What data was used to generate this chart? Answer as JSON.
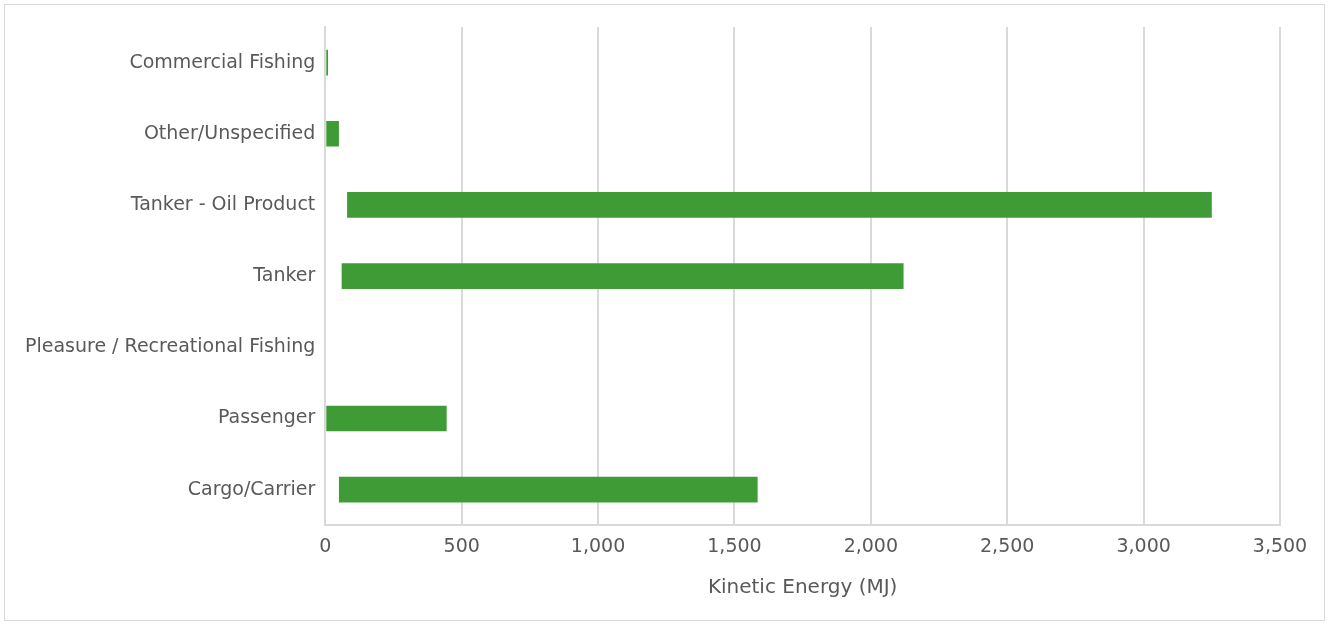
{
  "chart_data": {
    "type": "bar",
    "orientation": "horizontal",
    "xlabel": "Kinetic Energy (MJ)",
    "categories": [
      "Commercial Fishing",
      "Other/Unspecified",
      "Tanker - Oil Product",
      "Tanker",
      "Pleasure / Recreational Fishing",
      "Passenger",
      "Cargo/Carrier"
    ],
    "values": [
      10,
      50,
      3170,
      2060,
      null,
      445,
      1535
    ],
    "base": [
      0,
      0,
      80,
      60,
      null,
      0,
      50
    ],
    "color": "#3f9b35",
    "xlim": [
      0,
      3500
    ],
    "xticks": [
      {
        "value": 0,
        "label": "0"
      },
      {
        "value": 500,
        "label": "500"
      },
      {
        "value": 1000,
        "label": "1,000"
      },
      {
        "value": 1500,
        "label": "1,500"
      },
      {
        "value": 2000,
        "label": "2,000"
      },
      {
        "value": 2500,
        "label": "2,500"
      },
      {
        "value": 3000,
        "label": "3,000"
      },
      {
        "value": 3500,
        "label": "3,500"
      }
    ],
    "grid": "x",
    "legend": false
  }
}
